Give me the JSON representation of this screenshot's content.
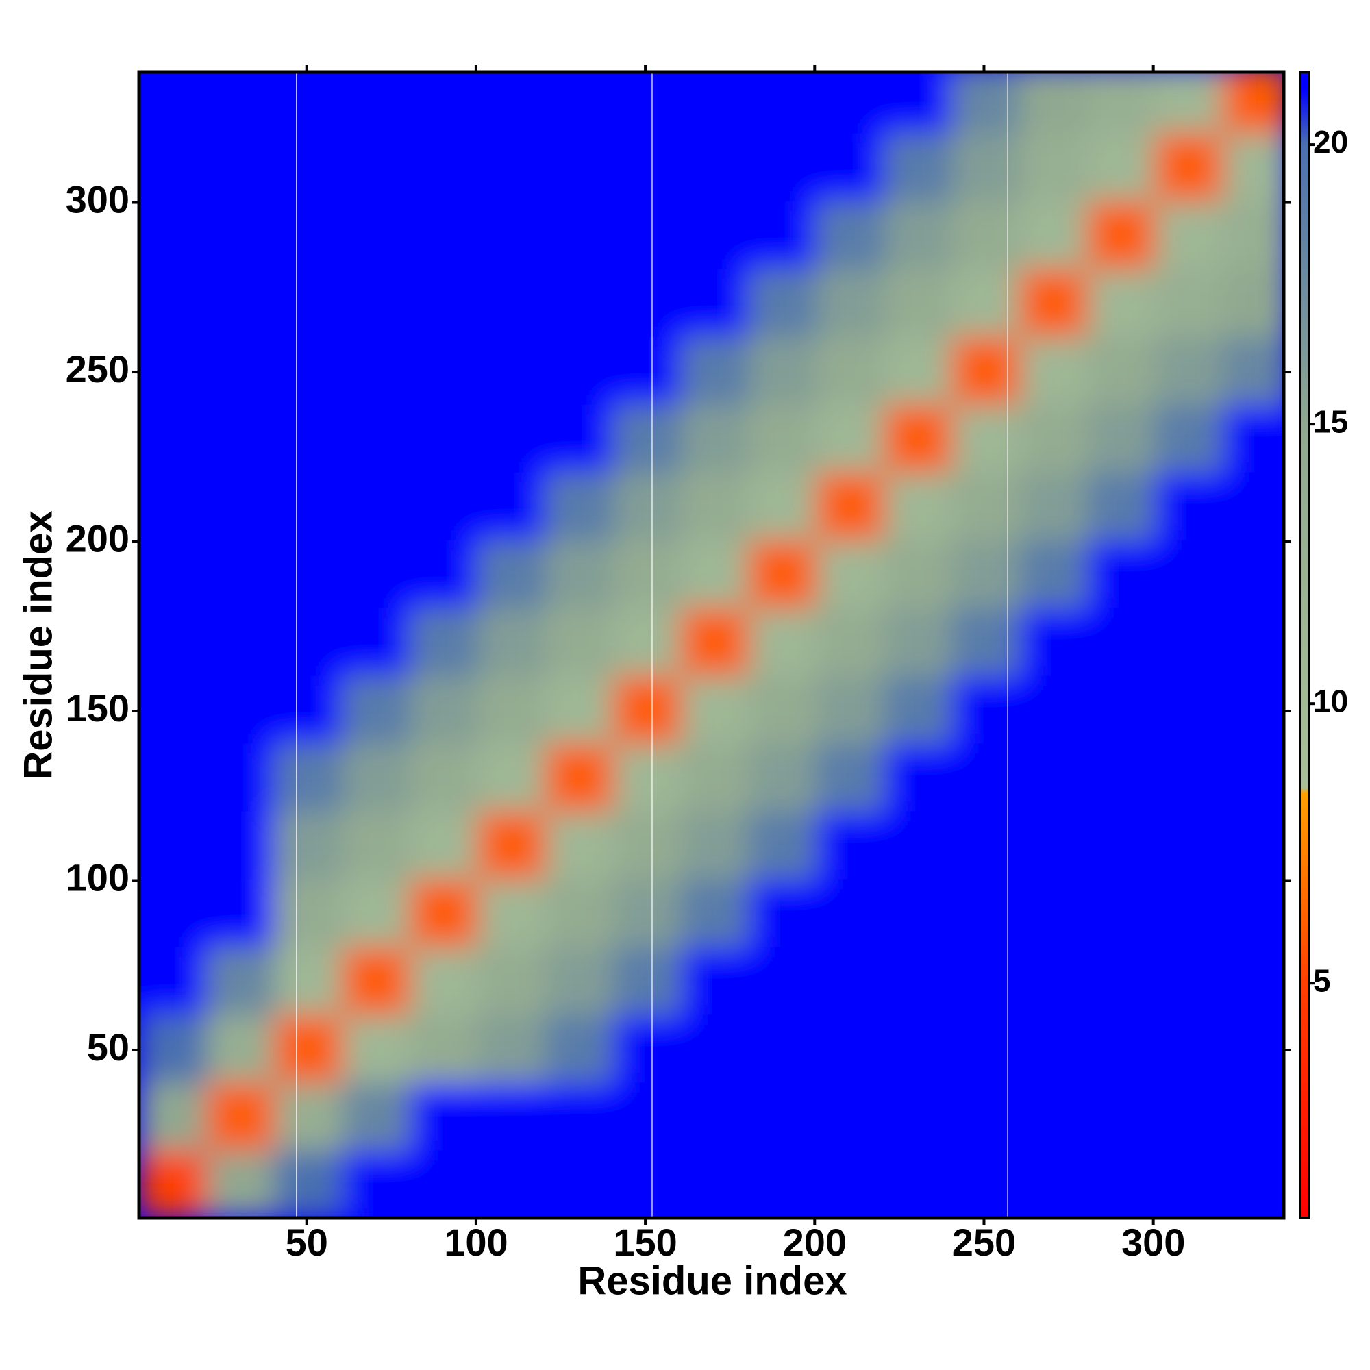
{
  "chart_data": {
    "type": "heatmap",
    "xlabel": "Residue index",
    "ylabel": "Residue index",
    "xlim": [
      0.5,
      338.5
    ],
    "ylim": [
      0.5,
      338.5
    ],
    "xticks": [
      50,
      100,
      150,
      200,
      250,
      300
    ],
    "yticks": [
      50,
      100,
      150,
      200,
      250,
      300
    ],
    "x_bins": [
      0.5,
      20.5,
      40.5,
      60.5,
      80.5,
      100.5,
      120.5,
      140.5,
      160.5,
      180.5,
      200.5,
      220.5,
      240.5,
      260.5,
      280.5,
      300.5,
      320.5,
      340.5
    ],
    "y_bins": [
      0.5,
      20.5,
      40.5,
      60.5,
      80.5,
      100.5,
      120.5,
      140.5,
      160.5,
      180.5,
      200.5,
      220.5,
      240.5,
      260.5,
      280.5,
      300.5,
      320.5,
      340.5
    ],
    "z": [
      [
        5,
        15,
        20,
        21,
        21,
        21,
        21,
        21,
        21,
        21,
        21,
        21,
        21,
        21,
        21,
        21,
        21
      ],
      [
        15,
        6,
        13,
        18,
        21,
        21,
        21,
        21,
        21,
        21,
        21,
        21,
        21,
        21,
        21,
        21,
        21
      ],
      [
        20,
        13,
        6,
        11,
        14,
        16,
        19,
        21,
        21,
        21,
        21,
        21,
        21,
        21,
        21,
        21,
        21
      ],
      [
        21,
        18,
        11,
        6,
        11,
        14,
        16,
        19,
        21,
        21,
        21,
        21,
        21,
        21,
        21,
        21,
        21
      ],
      [
        21,
        21,
        14,
        11,
        6,
        11,
        14,
        16,
        19,
        21,
        21,
        21,
        21,
        21,
        21,
        21,
        21
      ],
      [
        21,
        21,
        16,
        14,
        11,
        6,
        11,
        14,
        16,
        19,
        21,
        21,
        21,
        21,
        21,
        21,
        21
      ],
      [
        21,
        21,
        19,
        16,
        14,
        11,
        6,
        11,
        14,
        16,
        19,
        21,
        21,
        21,
        21,
        21,
        21
      ],
      [
        21,
        21,
        21,
        19,
        16,
        14,
        11,
        6,
        11,
        14,
        16,
        19,
        21,
        21,
        21,
        21,
        21
      ],
      [
        21,
        21,
        21,
        21,
        19,
        16,
        14,
        11,
        6,
        11,
        14,
        16,
        19,
        21,
        21,
        21,
        21
      ],
      [
        21,
        21,
        21,
        21,
        21,
        19,
        16,
        14,
        11,
        6,
        11,
        14,
        16,
        19,
        21,
        21,
        21
      ],
      [
        21,
        21,
        21,
        21,
        21,
        21,
        19,
        16,
        14,
        11,
        6,
        11,
        14,
        16,
        19,
        21,
        21
      ],
      [
        21,
        21,
        21,
        21,
        21,
        21,
        21,
        19,
        16,
        14,
        11,
        6,
        11,
        14,
        16,
        19,
        21
      ],
      [
        21,
        21,
        21,
        21,
        21,
        21,
        21,
        21,
        19,
        16,
        14,
        11,
        6,
        11,
        14,
        16,
        18
      ],
      [
        21,
        21,
        21,
        21,
        21,
        21,
        21,
        21,
        21,
        19,
        16,
        14,
        11,
        6,
        11,
        13,
        15
      ],
      [
        21,
        21,
        21,
        21,
        21,
        21,
        21,
        21,
        21,
        21,
        19,
        16,
        14,
        11,
        6,
        11,
        13
      ],
      [
        21,
        21,
        21,
        21,
        21,
        21,
        21,
        21,
        21,
        21,
        21,
        19,
        16,
        13,
        11,
        6,
        11
      ],
      [
        21,
        21,
        21,
        21,
        21,
        21,
        21,
        21,
        21,
        21,
        21,
        21,
        18,
        15,
        13,
        11,
        6
      ]
    ],
    "vlines": [
      47,
      152,
      257
    ],
    "clim": [
      0.8,
      21.3
    ],
    "cticks": [
      5,
      10,
      15,
      20
    ],
    "colorscale": [
      [
        0.8,
        "#ff0000"
      ],
      [
        5,
        "#ff4000"
      ],
      [
        8.4,
        "#ffa000"
      ],
      [
        8.5,
        "#a8c098"
      ],
      [
        15,
        "#90a890"
      ],
      [
        20,
        "#4a70b0"
      ],
      [
        21,
        "#0000ff"
      ],
      [
        21.3,
        "#0000ff"
      ]
    ]
  }
}
